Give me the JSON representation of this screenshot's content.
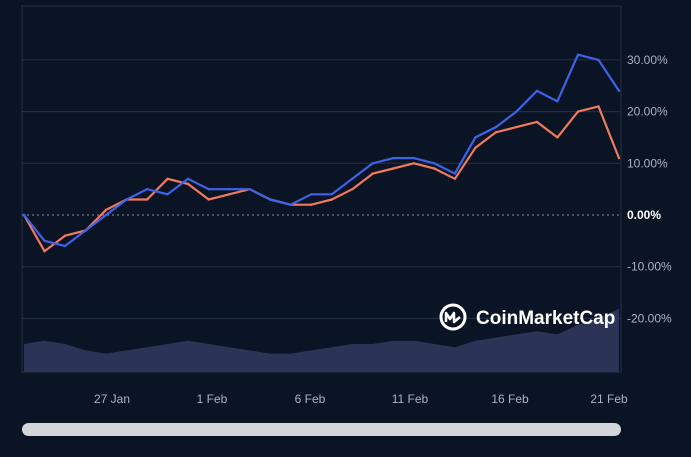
{
  "watermark": {
    "label": "CoinMarketCap",
    "icon": "coinmarketcap-logo-icon"
  },
  "colors": {
    "background": "#0b1424",
    "grid": "#243044",
    "series_blue": "#3d63e8",
    "series_orange": "#f07a5e",
    "volume_fill": "#2b3456"
  },
  "chart_data": {
    "type": "line",
    "title": "",
    "xlabel": "",
    "ylabel": "",
    "x_ticks": [
      "27 Jan",
      "1 Feb",
      "6 Feb",
      "11 Feb",
      "16 Feb",
      "21 Feb"
    ],
    "y_ticks": [
      "30.00%",
      "20.00%",
      "10.00%",
      "0.00%",
      "-10.00%",
      "-20.00%"
    ],
    "ylim": [
      -30,
      40
    ],
    "grid": true,
    "zero_line": "dotted",
    "x": [
      "23 Jan",
      "24 Jan",
      "25 Jan",
      "26 Jan",
      "27 Jan",
      "28 Jan",
      "29 Jan",
      "30 Jan",
      "31 Jan",
      "1 Feb",
      "2 Feb",
      "3 Feb",
      "4 Feb",
      "5 Feb",
      "6 Feb",
      "7 Feb",
      "8 Feb",
      "9 Feb",
      "10 Feb",
      "11 Feb",
      "12 Feb",
      "13 Feb",
      "14 Feb",
      "15 Feb",
      "16 Feb",
      "17 Feb",
      "18 Feb",
      "19 Feb",
      "20 Feb",
      "21 Feb"
    ],
    "series": [
      {
        "values": [
          0,
          -5,
          -6,
          -3,
          0,
          3,
          5,
          4,
          7,
          5,
          5,
          5,
          3,
          2,
          4,
          4,
          7,
          10,
          11,
          11,
          10,
          8,
          15,
          17,
          20,
          24,
          22,
          31,
          30,
          24
        ]
      },
      {
        "values": [
          0,
          -7,
          -4,
          -3,
          1,
          3,
          3,
          7,
          6,
          3,
          4,
          5,
          3,
          2,
          2,
          3,
          5,
          8,
          9,
          10,
          9,
          7,
          13,
          16,
          17,
          18,
          15,
          20,
          21,
          11
        ]
      }
    ],
    "volume": [
      5,
      6,
      5,
      3,
      2,
      3,
      4,
      5,
      6,
      5,
      4,
      3,
      2,
      2,
      3,
      4,
      5,
      5,
      6,
      6,
      5,
      4,
      6,
      7,
      8,
      9,
      8,
      11,
      13,
      16
    ]
  }
}
